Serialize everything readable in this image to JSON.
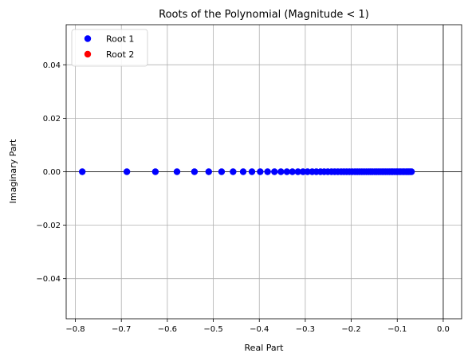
{
  "chart_data": {
    "type": "scatter",
    "title": "Roots of the Polynomial (Magnitude < 1)",
    "xlabel": "Real Part",
    "ylabel": "Imaginary Part",
    "xlim": [
      -0.82,
      0.04
    ],
    "ylim": [
      -0.055,
      0.055
    ],
    "xticks": [
      -0.8,
      -0.7,
      -0.6,
      -0.5,
      -0.4,
      -0.3,
      -0.2,
      -0.1,
      0.0
    ],
    "xtick_labels": [
      "−0.8",
      "−0.7",
      "−0.6",
      "−0.5",
      "−0.4",
      "−0.3",
      "−0.2",
      "−0.1",
      "0.0"
    ],
    "yticks": [
      -0.04,
      -0.02,
      0.0,
      0.02,
      0.04
    ],
    "ytick_labels": [
      "−0.04",
      "−0.02",
      "0.00",
      "0.02",
      "0.04"
    ],
    "grid": true,
    "reference_lines": {
      "x": 0,
      "y": 0,
      "color": "#000000"
    },
    "legend": {
      "placement": "top-left"
    },
    "series": [
      {
        "name": "Root 1",
        "color": "#0000ff",
        "x": [
          -0.785,
          -0.688,
          -0.626,
          -0.579,
          -0.541,
          -0.51,
          -0.482,
          -0.457,
          -0.435,
          -0.416,
          -0.398,
          -0.382,
          -0.367,
          -0.353,
          -0.34,
          -0.328,
          -0.316,
          -0.305,
          -0.295,
          -0.285,
          -0.276,
          -0.267,
          -0.259,
          -0.251,
          -0.243,
          -0.236,
          -0.229,
          -0.222,
          -0.216,
          -0.21,
          -0.204,
          -0.198,
          -0.192,
          -0.187,
          -0.182,
          -0.177,
          -0.172,
          -0.167,
          -0.162,
          -0.158,
          -0.154,
          -0.149,
          -0.145,
          -0.141,
          -0.137,
          -0.133,
          -0.129,
          -0.125,
          -0.121,
          -0.117,
          -0.113,
          -0.11,
          -0.106,
          -0.102,
          -0.099,
          -0.095,
          -0.092,
          -0.088,
          -0.085,
          -0.081,
          -0.078,
          -0.075,
          -0.072,
          -0.069
        ],
        "y": [
          0,
          0,
          0,
          0,
          0,
          0,
          0,
          0,
          0,
          0,
          0,
          0,
          0,
          0,
          0,
          0,
          0,
          0,
          0,
          0,
          0,
          0,
          0,
          0,
          0,
          0,
          0,
          0,
          0,
          0,
          0,
          0,
          0,
          0,
          0,
          0,
          0,
          0,
          0,
          0,
          0,
          0,
          0,
          0,
          0,
          0,
          0,
          0,
          0,
          0,
          0,
          0,
          0,
          0,
          0,
          0,
          0,
          0,
          0,
          0,
          0,
          0,
          0,
          0
        ]
      },
      {
        "name": "Root 2",
        "color": "#ff0000",
        "x": [],
        "y": []
      }
    ]
  }
}
